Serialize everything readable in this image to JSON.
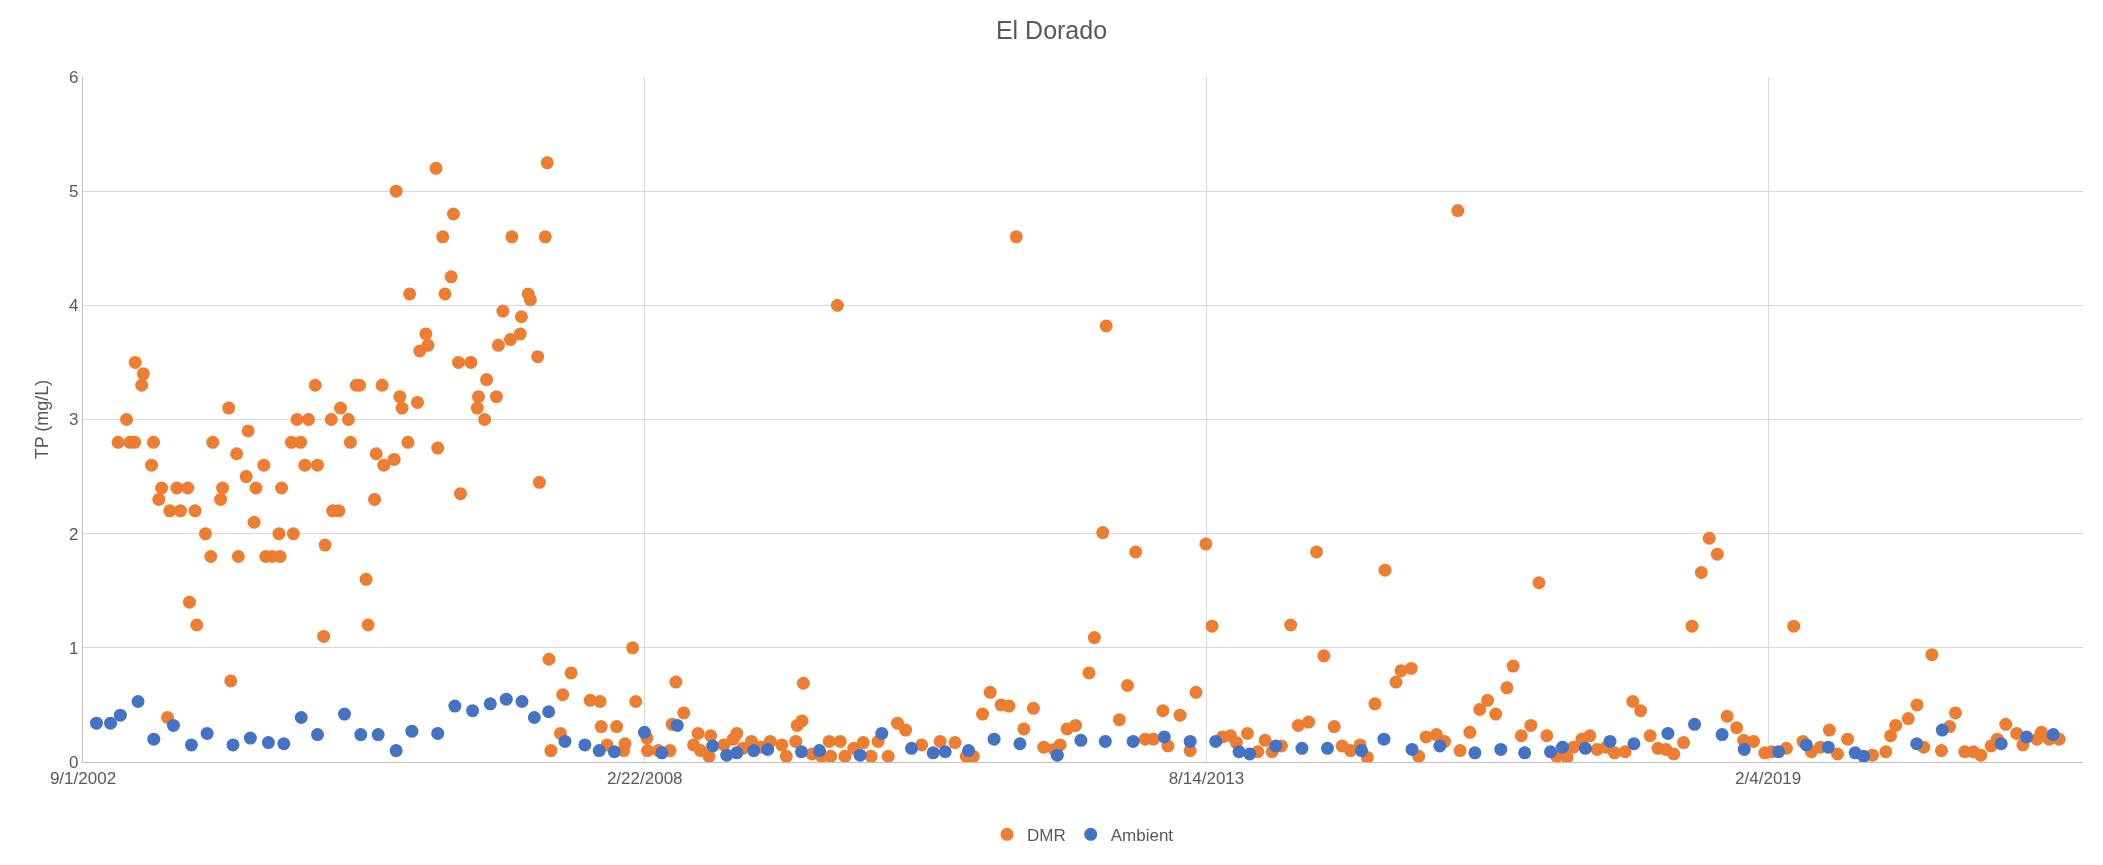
{
  "chart_data": {
    "type": "scatter",
    "title": "El Dorado",
    "ylabel": "TP (mg/L)",
    "xlim": [
      "2002-09-01",
      "2022-03-01"
    ],
    "xticks": [
      {
        "value": "2002-09-01",
        "label": "9/1/2002"
      },
      {
        "value": "2008-02-22",
        "label": "2/22/2008"
      },
      {
        "value": "2013-08-14",
        "label": "8/14/2013"
      },
      {
        "value": "2019-02-04",
        "label": "2/4/2019"
      }
    ],
    "ylim": [
      0,
      6
    ],
    "yticks": [
      0,
      1,
      2,
      3,
      4,
      5,
      6
    ],
    "grid": true,
    "legend": "bottom",
    "marker": "circle",
    "series": [
      {
        "name": "DMR",
        "color": "#ed7d31",
        "x": [
          "2003-01-04",
          "2003-02-03",
          "2003-02-15",
          "2003-03-04",
          "2003-03-06",
          "2003-03-29",
          "2003-04-04",
          "2003-05-03",
          "2003-05-10",
          "2003-05-29",
          "2003-06-08",
          "2003-06-29",
          "2003-07-07",
          "2003-08-01",
          "2003-08-14",
          "2003-09-09",
          "2003-09-15",
          "2003-10-05",
          "2003-10-11",
          "2003-11-11",
          "2003-11-30",
          "2003-12-07",
          "2004-01-04",
          "2004-01-11",
          "2004-02-02",
          "2004-02-09",
          "2004-03-01",
          "2004-03-07",
          "2004-04-04",
          "2004-04-11",
          "2004-05-02",
          "2004-05-09",
          "2004-06-06",
          "2004-06-13",
          "2004-07-06",
          "2004-07-30",
          "2004-08-03",
          "2004-08-08",
          "2004-09-12",
          "2004-09-19",
          "2004-10-02",
          "2004-10-15",
          "2004-10-30",
          "2004-11-12",
          "2004-12-06",
          "2004-12-14",
          "2005-01-05",
          "2005-01-10",
          "2005-02-01",
          "2005-02-06",
          "2005-02-28",
          "2005-03-06",
          "2005-04-03",
          "2005-04-10",
          "2005-05-01",
          "2005-05-13",
          "2005-06-05",
          "2005-06-12",
          "2005-07-05",
          "2005-07-11",
          "2005-08-01",
          "2005-08-07",
          "2005-09-13",
          "2005-09-20",
          "2005-10-03",
          "2005-10-11",
          "2005-11-01",
          "2005-11-07",
          "2005-12-05",
          "2005-12-13",
          "2006-01-04",
          "2006-01-11",
          "2006-02-09",
          "2006-02-15",
          "2006-03-05",
          "2006-03-13",
          "2006-04-04",
          "2006-04-12",
          "2006-04-30",
          "2006-05-07",
          "2006-06-13",
          "2006-07-06",
          "2006-07-10",
          "2006-08-01",
          "2006-08-08",
          "2006-09-12",
          "2006-09-19",
          "2006-10-05",
          "2006-11-01",
          "2006-11-06",
          "2006-12-06",
          "2006-12-10",
          "2007-01-03",
          "2007-01-11",
          "2007-02-06",
          "2007-02-12",
          "2007-03-05",
          "2007-03-12",
          "2007-03-18",
          "2007-03-25",
          "2007-04-28",
          "2007-05-06",
          "2007-06-05",
          "2007-08-12",
          "2007-09-16",
          "2007-09-20",
          "2007-10-11",
          "2007-11-14",
          "2007-12-09",
          "2007-12-14",
          "2008-01-10",
          "2008-01-21",
          "2008-03-01",
          "2008-03-03",
          "2008-04-11",
          "2008-05-22",
          "2008-05-30",
          "2008-06-12",
          "2008-07-10",
          "2008-08-14",
          "2008-08-30",
          "2008-09-08",
          "2008-10-08",
          "2008-10-14",
          "2008-11-30",
          "2009-01-02",
          "2009-01-15",
          "2009-02-05",
          "2009-03-08",
          "2009-04-10",
          "2009-05-14",
          "2009-06-24",
          "2009-07-10",
          "2009-08-13",
          "2009-08-18",
          "2009-09-04",
          "2009-09-09",
          "2009-10-10",
          "2009-11-13",
          "2009-12-10",
          "2009-12-15",
          "2010-01-08",
          "2010-01-18",
          "2010-02-04",
          "2010-03-07",
          "2010-04-10",
          "2010-05-08",
          "2010-06-02",
          "2010-07-08",
          "2010-08-10",
          "2010-09-08",
          "2010-11-04",
          "2011-01-09",
          "2011-03-03",
          "2011-04-12",
          "2011-05-07",
          "2011-06-09",
          "2011-07-06",
          "2011-08-14",
          "2011-09-11",
          "2011-10-07",
          "2011-11-03",
          "2011-12-07",
          "2012-01-13",
          "2012-02-19",
          "2012-03-11",
          "2012-04-05",
          "2012-05-05",
          "2012-06-22",
          "2012-07-11",
          "2012-08-10",
          "2012-08-22",
          "2012-10-08",
          "2012-11-06",
          "2012-12-05",
          "2013-01-08",
          "2013-02-06",
          "2013-03-12",
          "2013-03-30",
          "2013-05-12",
          "2013-06-17",
          "2013-07-08",
          "2013-08-12",
          "2013-09-03",
          "2013-10-10",
          "2013-11-08",
          "2013-11-29",
          "2014-01-07",
          "2014-02-13",
          "2014-03-11",
          "2014-04-05",
          "2014-05-08",
          "2014-06-10",
          "2014-07-07",
          "2014-08-13",
          "2014-09-10",
          "2014-10-06",
          "2014-11-12",
          "2014-12-10",
          "2015-01-09",
          "2015-02-12",
          "2015-03-10",
          "2015-04-06",
          "2015-05-12",
          "2015-06-20",
          "2015-07-08",
          "2015-08-13",
          "2015-09-09",
          "2015-10-05",
          "2015-11-11",
          "2015-12-10",
          "2016-01-26",
          "2016-02-03",
          "2016-03-09",
          "2016-04-13",
          "2016-05-11",
          "2016-06-09",
          "2016-07-19",
          "2016-08-10",
          "2016-09-08",
          "2016-10-12",
          "2016-11-10",
          "2016-12-08",
          "2017-01-12",
          "2017-02-18",
          "2017-03-13",
          "2017-04-12",
          "2017-05-10",
          "2017-06-05",
          "2017-07-08",
          "2017-08-06",
          "2017-09-13",
          "2017-10-10",
          "2017-11-07",
          "2017-12-11",
          "2018-01-08",
          "2018-02-05",
          "2018-03-05",
          "2018-04-09",
          "2018-05-09",
          "2018-06-11",
          "2018-07-09",
          "2018-08-07",
          "2018-09-11",
          "2018-10-15",
          "2018-11-09",
          "2018-12-14",
          "2019-01-23",
          "2019-02-17",
          "2019-04-10",
          "2019-05-06",
          "2019-06-08",
          "2019-07-08",
          "2019-08-09",
          "2019-09-10",
          "2019-10-09",
          "2019-11-14",
          "2019-12-08",
          "2020-02-10",
          "2020-03-29",
          "2020-04-15",
          "2020-05-03",
          "2020-06-17",
          "2020-07-18",
          "2020-08-11",
          "2020-09-09",
          "2020-10-13",
          "2020-11-11",
          "2020-12-02",
          "2021-01-04",
          "2021-02-04",
          "2021-03-02",
          "2021-04-08",
          "2021-04-30",
          "2021-05-30",
          "2021-07-08",
          "2021-07-30",
          "2021-09-18",
          "2021-10-04",
          "2021-11-01",
          "2021-12-06"
        ],
        "values": [
          2.8,
          3.0,
          2.8,
          2.8,
          3.5,
          3.3,
          3.4,
          2.6,
          2.8,
          2.3,
          2.4,
          0.39,
          2.2,
          2.4,
          2.2,
          2.4,
          1.4,
          2.2,
          1.2,
          2.0,
          1.8,
          2.8,
          2.3,
          2.4,
          3.1,
          0.71,
          2.7,
          1.8,
          2.5,
          2.9,
          2.1,
          2.4,
          2.6,
          1.8,
          1.8,
          2.0,
          1.8,
          2.4,
          2.8,
          2.0,
          3.0,
          2.8,
          2.6,
          3.0,
          3.3,
          2.6,
          1.1,
          1.9,
          3.0,
          2.2,
          2.2,
          3.1,
          3.0,
          2.8,
          3.3,
          3.3,
          1.6,
          1.2,
          2.3,
          2.7,
          3.3,
          2.6,
          2.65,
          5.0,
          3.2,
          3.1,
          2.8,
          4.1,
          3.15,
          3.6,
          3.75,
          3.65,
          5.2,
          2.75,
          4.6,
          4.1,
          4.25,
          4.8,
          3.5,
          2.35,
          3.5,
          3.1,
          3.2,
          3.0,
          3.35,
          3.2,
          3.65,
          3.95,
          3.7,
          4.6,
          3.75,
          3.9,
          4.1,
          4.05,
          3.55,
          2.45,
          4.6,
          5.25,
          0.9,
          0.1,
          0.25,
          0.59,
          0.78,
          0.54,
          0.53,
          0.31,
          0.15,
          0.31,
          0.1,
          0.16,
          1.0,
          0.53,
          0.21,
          0.1,
          0.1,
          0.1,
          0.33,
          0.7,
          0.43,
          0.15,
          0.25,
          0.1,
          0.05,
          0.23,
          0.15,
          0.2,
          0.25,
          0.12,
          0.18,
          0.13,
          0.18,
          0.15,
          0.05,
          0.18,
          0.32,
          0.36,
          0.69,
          0.07,
          0.05,
          0.18,
          0.05,
          4.0,
          0.18,
          0.05,
          0.12,
          0.17,
          0.05,
          0.18,
          0.05,
          0.34,
          0.28,
          0.15,
          0.18,
          0.17,
          0.05,
          0.05,
          0.42,
          0.61,
          0.5,
          0.49,
          4.6,
          0.29,
          0.47,
          0.13,
          0.11,
          0.15,
          0.29,
          0.32,
          0.78,
          1.09,
          2.01,
          3.82,
          0.37,
          0.67,
          1.84,
          0.2,
          0.2,
          0.45,
          0.14,
          0.41,
          0.1,
          0.61,
          1.91,
          1.19,
          0.22,
          0.23,
          0.17,
          0.25,
          0.09,
          0.19,
          0.09,
          0.14,
          1.2,
          0.32,
          0.35,
          1.84,
          0.93,
          0.31,
          0.14,
          0.1,
          0.15,
          0.04,
          0.51,
          1.68,
          0.7,
          0.8,
          0.82,
          0.05,
          0.22,
          0.24,
          0.18,
          4.83,
          0.1,
          0.26,
          0.46,
          0.54,
          0.42,
          0.65,
          0.84,
          0.23,
          0.32,
          1.57,
          0.23,
          0.05,
          0.04,
          0.13,
          0.2,
          0.23,
          0.11,
          0.13,
          0.08,
          0.09,
          0.53,
          0.45,
          0.23,
          0.12,
          0.11,
          0.07,
          0.17,
          1.19,
          1.66,
          1.96,
          1.82,
          0.4,
          0.3,
          0.19,
          0.18,
          0.08,
          0.09,
          0.12,
          1.19,
          0.18,
          0.09,
          0.13,
          0.28,
          0.07,
          0.2,
          null,
          0.06,
          0.09,
          0.23,
          0.32,
          0.38,
          0.5,
          0.13,
          0.94,
          0.1,
          0.31,
          0.43,
          0.09,
          0.09,
          0.06,
          0.14,
          0.2,
          0.33,
          0.25,
          0.15,
          0.2,
          0.26,
          0.2,
          0.2
        ]
      },
      {
        "name": "Ambient",
        "color": "#4472c4",
        "x": [
          "2002-10-19",
          "2002-12-08",
          "2003-01-12",
          "2003-03-16",
          "2003-05-11",
          "2003-07-20",
          "2003-09-22",
          "2003-11-17",
          "2004-02-17",
          "2004-04-19",
          "2004-06-22",
          "2004-08-16",
          "2004-10-17",
          "2004-12-14",
          "2005-03-20",
          "2005-05-17",
          "2005-07-18",
          "2005-09-20",
          "2005-11-15",
          "2006-02-15",
          "2006-04-17",
          "2006-06-19",
          "2006-08-21",
          "2006-10-17",
          "2006-12-12",
          "2007-01-25",
          "2007-03-17",
          "2007-05-14",
          "2007-07-24",
          "2007-09-13",
          "2007-11-06",
          "2008-02-21",
          "2008-04-23",
          "2008-06-17",
          "2008-10-21",
          "2008-12-10",
          "2009-01-15",
          "2009-03-16",
          "2009-05-05",
          "2009-09-02",
          "2009-11-05",
          "2010-03-30",
          "2010-06-15",
          "2010-09-29",
          "2010-12-15",
          "2011-01-27",
          "2011-04-20",
          "2011-07-20",
          "2011-10-20",
          "2012-03-01",
          "2012-05-24",
          "2012-08-19",
          "2012-11-26",
          "2013-03-17",
          "2013-06-17",
          "2013-09-16",
          "2013-12-08",
          "2014-01-15",
          "2014-04-18",
          "2014-07-20",
          "2014-10-19",
          "2015-02-17",
          "2015-05-08",
          "2015-08-16",
          "2015-11-23",
          "2016-03-27",
          "2016-06-27",
          "2016-09-20",
          "2016-12-21",
          "2017-02-02",
          "2017-04-24",
          "2017-07-21",
          "2017-10-14",
          "2018-02-12",
          "2018-05-18",
          "2018-08-24",
          "2018-11-11",
          "2019-03-13",
          "2019-06-20",
          "2019-09-06",
          "2019-12-11",
          "2020-01-10",
          "2020-07-17",
          "2020-10-16",
          "2021-05-14",
          "2021-08-12",
          "2021-11-15"
        ],
        "values": [
          0.34,
          0.34,
          0.41,
          0.53,
          0.2,
          0.32,
          0.15,
          0.25,
          0.15,
          0.21,
          0.17,
          0.16,
          0.39,
          0.24,
          0.42,
          0.24,
          0.24,
          0.1,
          0.27,
          0.25,
          0.49,
          0.45,
          0.51,
          0.55,
          0.53,
          0.39,
          0.44,
          0.18,
          0.15,
          0.1,
          0.09,
          0.26,
          0.08,
          0.32,
          0.14,
          0.06,
          0.08,
          0.1,
          0.11,
          0.09,
          0.1,
          0.06,
          0.25,
          0.12,
          0.08,
          0.09,
          0.1,
          0.2,
          0.16,
          0.06,
          0.19,
          0.18,
          0.18,
          0.22,
          0.18,
          0.18,
          0.09,
          0.07,
          0.14,
          0.12,
          0.12,
          0.1,
          0.2,
          0.11,
          0.14,
          0.08,
          0.11,
          0.08,
          0.09,
          0.13,
          0.12,
          0.18,
          0.16,
          0.25,
          0.33,
          0.24,
          0.11,
          0.09,
          0.15,
          0.13,
          0.08,
          0.05,
          0.16,
          0.28,
          0.16,
          0.22,
          0.24
        ]
      }
    ]
  }
}
